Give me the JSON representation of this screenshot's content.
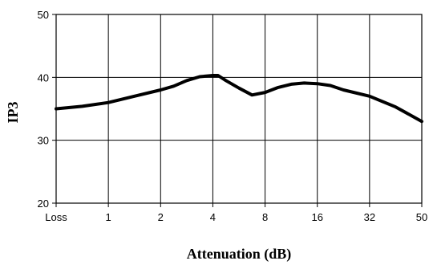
{
  "chart_data": {
    "type": "line",
    "title": "",
    "xlabel": "Attenuation (dB)",
    "ylabel": "IP3",
    "x_ticks": [
      "Loss",
      "1",
      "2",
      "4",
      "8",
      "16",
      "32",
      "50"
    ],
    "y_ticks": [
      20,
      30,
      40,
      50
    ],
    "ylim": [
      20,
      50
    ],
    "grid": true,
    "legend": "none",
    "line_color": "#000000",
    "series": [
      {
        "x": [
          0,
          0.5,
          1,
          1.5,
          2,
          2.25,
          2.5,
          2.75,
          3,
          3.1,
          3.25,
          3.5,
          3.75,
          4,
          4.25,
          4.5,
          4.75,
          5,
          5.25,
          5.5,
          6,
          6.5,
          7
        ],
        "y": [
          35.0,
          35.4,
          36.0,
          37.0,
          38.0,
          38.6,
          39.5,
          40.1,
          40.3,
          40.3,
          39.5,
          38.3,
          37.2,
          37.6,
          38.4,
          38.9,
          39.1,
          39.0,
          38.7,
          38.0,
          37.0,
          35.3,
          33.0
        ]
      }
    ]
  }
}
